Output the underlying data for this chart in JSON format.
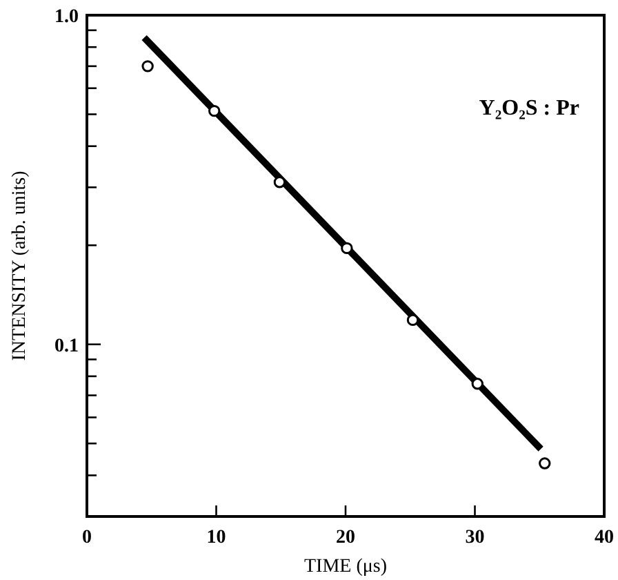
{
  "chart_data": {
    "type": "scatter",
    "xlabel": "TIME (μs)",
    "ylabel": "INTENSITY (arb. units)",
    "log": "y",
    "grid": false,
    "xlim": [
      0,
      40
    ],
    "xticks": [
      0,
      10,
      20,
      30,
      40
    ],
    "ylim": [
      0.03,
      1
    ],
    "yticks": [
      {
        "value": 1,
        "label": "1.0"
      },
      {
        "value": 0.9,
        "label": null
      },
      {
        "value": 0.8,
        "label": null
      },
      {
        "value": 0.7,
        "label": null
      },
      {
        "value": 0.6,
        "label": null
      },
      {
        "value": 0.5,
        "label": null
      },
      {
        "value": 0.4,
        "label": null
      },
      {
        "value": 0.3,
        "label": null
      },
      {
        "value": 0.2,
        "label": null
      },
      0.1,
      {
        "value": 0.09,
        "label": null
      },
      {
        "value": 0.08,
        "label": null
      },
      {
        "value": 0.07,
        "label": null
      },
      {
        "value": 0.06,
        "label": null
      },
      {
        "value": 0.05,
        "label": null
      },
      {
        "value": 0.04,
        "label": null
      }
    ],
    "annotations": [
      "Y₂O₂S : Pr"
    ],
    "series": [
      {
        "color": "#000000",
        "marker": "circle",
        "x": [
          4.7,
          9.85,
          14.9,
          20.1,
          25.2,
          30.2,
          35.4
        ],
        "values": [
          0.7,
          0.512,
          0.311,
          0.196,
          0.1186,
          0.0759,
          0.0435
        ]
      },
      {
        "type": "line",
        "color": "#000000",
        "line_style": "solid",
        "x": [
          4.43,
          35.1
        ],
        "values": [
          0.855,
          0.0481
        ]
      }
    ]
  }
}
